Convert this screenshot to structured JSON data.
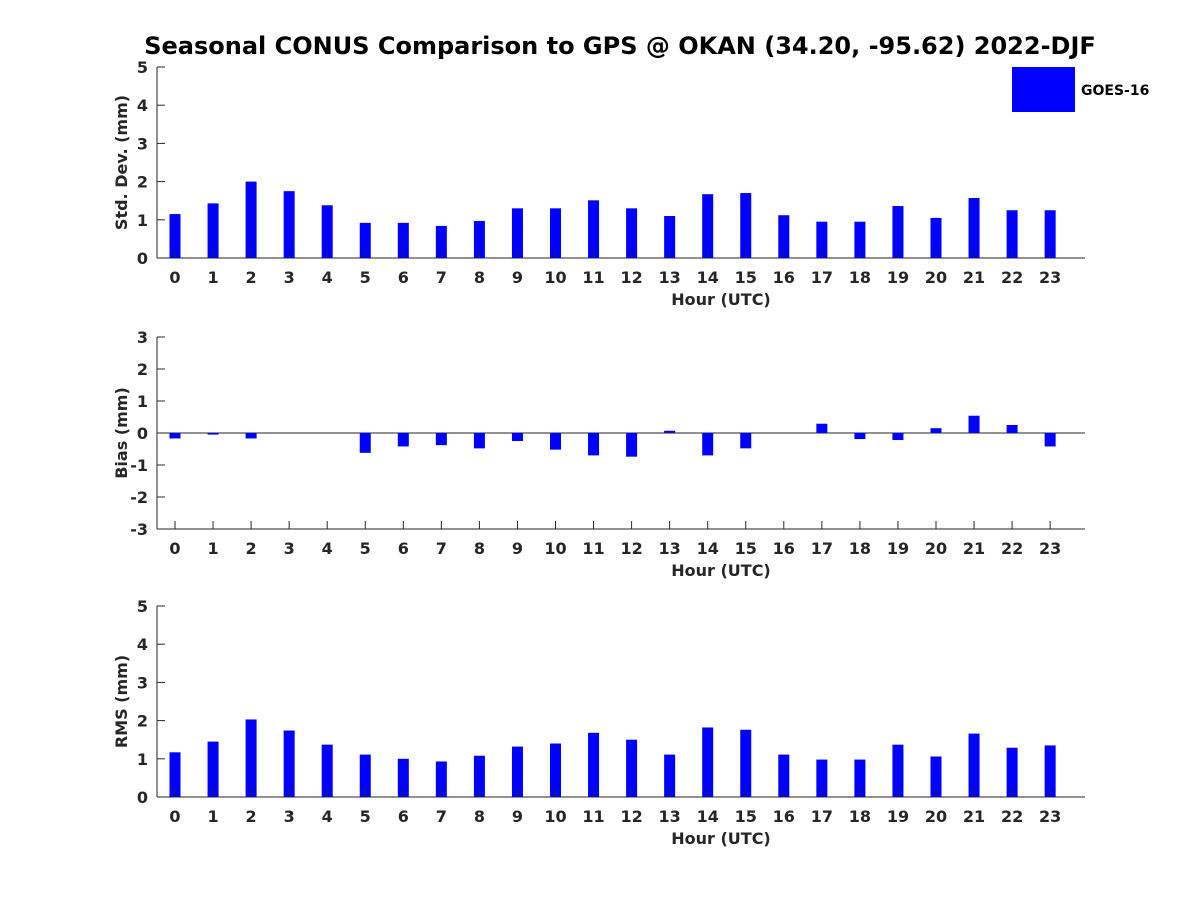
{
  "title": "Seasonal CONUS Comparison to GPS @ OKAN (34.20, -95.62) 2022-DJF",
  "legend": {
    "label": "GOES-16",
    "placement": "top-right"
  },
  "colors": {
    "bar": "#0000ff",
    "axis": "#262626"
  },
  "chart_data": [
    {
      "type": "bar",
      "xlabel": "Hour (UTC)",
      "ylabel": "Std. Dev. (mm)",
      "ylim": [
        0,
        5
      ],
      "yticks": [
        0,
        1,
        2,
        3,
        4,
        5
      ],
      "categories": [
        "0",
        "1",
        "2",
        "3",
        "4",
        "5",
        "6",
        "7",
        "8",
        "9",
        "10",
        "11",
        "12",
        "13",
        "14",
        "15",
        "16",
        "17",
        "18",
        "19",
        "20",
        "21",
        "22",
        "23"
      ],
      "series": [
        {
          "name": "GOES-16",
          "values": [
            1.15,
            1.43,
            2.0,
            1.75,
            1.38,
            0.92,
            0.92,
            0.84,
            0.97,
            1.3,
            1.3,
            1.51,
            1.3,
            1.1,
            1.67,
            1.7,
            1.12,
            0.95,
            0.95,
            1.36,
            1.05,
            1.57,
            1.25,
            1.25
          ]
        }
      ]
    },
    {
      "type": "bar",
      "xlabel": "Hour (UTC)",
      "ylabel": "Bias (mm)",
      "ylim": [
        -3,
        3
      ],
      "yticks": [
        -3,
        -2,
        -1,
        0,
        1,
        2,
        3
      ],
      "categories": [
        "0",
        "1",
        "2",
        "3",
        "4",
        "5",
        "6",
        "7",
        "8",
        "9",
        "10",
        "11",
        "12",
        "13",
        "14",
        "15",
        "16",
        "17",
        "18",
        "19",
        "20",
        "21",
        "22",
        "23"
      ],
      "series": [
        {
          "name": "GOES-16",
          "values": [
            -0.17,
            -0.05,
            -0.17,
            0,
            0,
            -0.62,
            -0.42,
            -0.38,
            -0.48,
            -0.25,
            -0.52,
            -0.7,
            -0.74,
            0.07,
            -0.7,
            -0.48,
            0,
            0.29,
            -0.19,
            -0.22,
            0.15,
            0.54,
            0.25,
            -0.42
          ]
        }
      ]
    },
    {
      "type": "bar",
      "xlabel": "Hour (UTC)",
      "ylabel": "RMS (mm)",
      "ylim": [
        0,
        5
      ],
      "yticks": [
        0,
        1,
        2,
        3,
        4,
        5
      ],
      "categories": [
        "0",
        "1",
        "2",
        "3",
        "4",
        "5",
        "6",
        "7",
        "8",
        "9",
        "10",
        "11",
        "12",
        "13",
        "14",
        "15",
        "16",
        "17",
        "18",
        "19",
        "20",
        "21",
        "22",
        "23"
      ],
      "series": [
        {
          "name": "GOES-16",
          "values": [
            1.17,
            1.45,
            2.03,
            1.74,
            1.37,
            1.11,
            1.0,
            0.93,
            1.08,
            1.32,
            1.4,
            1.68,
            1.5,
            1.11,
            1.82,
            1.76,
            1.11,
            0.98,
            0.98,
            1.37,
            1.06,
            1.66,
            1.29,
            1.35
          ]
        }
      ]
    }
  ]
}
